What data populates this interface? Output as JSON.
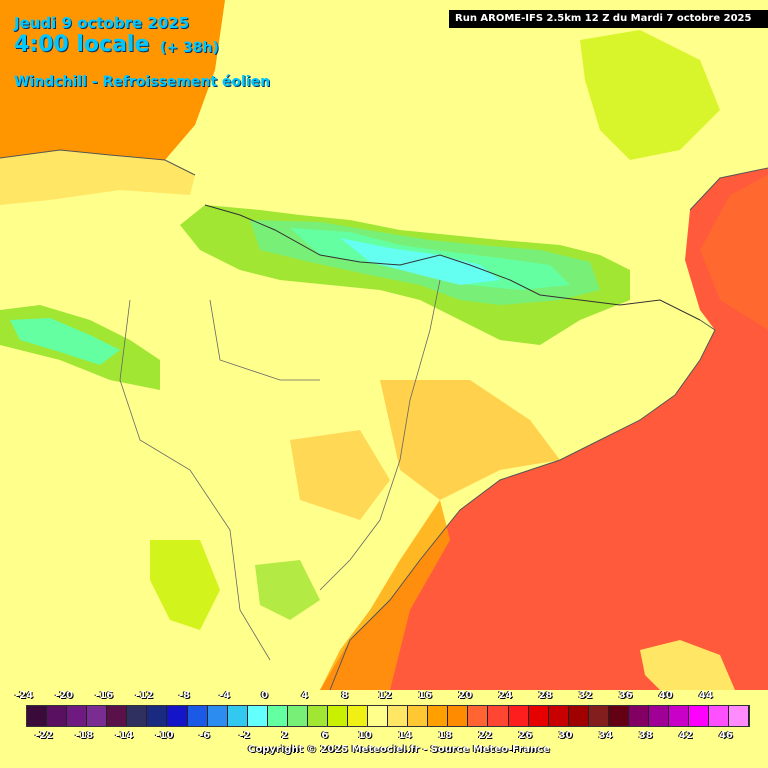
{
  "header": {
    "date": "Jeudi 9 octobre 2025",
    "time": "4:00 locale",
    "offset": "(+ 38h)",
    "parameter": "Windchill - Refroissement éolien"
  },
  "run_info": "Run AROME-IFS 2.5km 12 Z du Mardi 7 octobre 2025",
  "legend": {
    "labels_top": [
      "-24",
      "-20",
      "-16",
      "-12",
      "-8",
      "-4",
      "0",
      "4",
      "8",
      "12",
      "16",
      "20",
      "24",
      "28",
      "32",
      "36",
      "40",
      "44"
    ],
    "labels_bottom": [
      "-22",
      "-18",
      "-14",
      "-10",
      "-6",
      "-2",
      "2",
      "6",
      "10",
      "14",
      "18",
      "22",
      "26",
      "30",
      "34",
      "38",
      "42",
      "46"
    ],
    "colors": [
      "#3a0a3a",
      "#5a1060",
      "#6e1a80",
      "#7a2c92",
      "#5a1048",
      "#303060",
      "#1a2a80",
      "#1414c8",
      "#1a5ae6",
      "#2c8cf0",
      "#32c8f0",
      "#64ffff",
      "#64ffa0",
      "#78f078",
      "#a0e632",
      "#c8f000",
      "#f0f014",
      "#ffff8c",
      "#ffe664",
      "#ffc832",
      "#ffa000",
      "#ff8c00",
      "#ff6432",
      "#ff4632",
      "#ff1e1e",
      "#e60000",
      "#c80000",
      "#a00000",
      "#821e1e",
      "#640014",
      "#820064",
      "#a00096",
      "#c800c8",
      "#ff00ff",
      "#ff50ff",
      "#ff8cff"
    ]
  },
  "copyright": "Copyright © 2025 Meteociel.fr - Source Meteo-France"
}
